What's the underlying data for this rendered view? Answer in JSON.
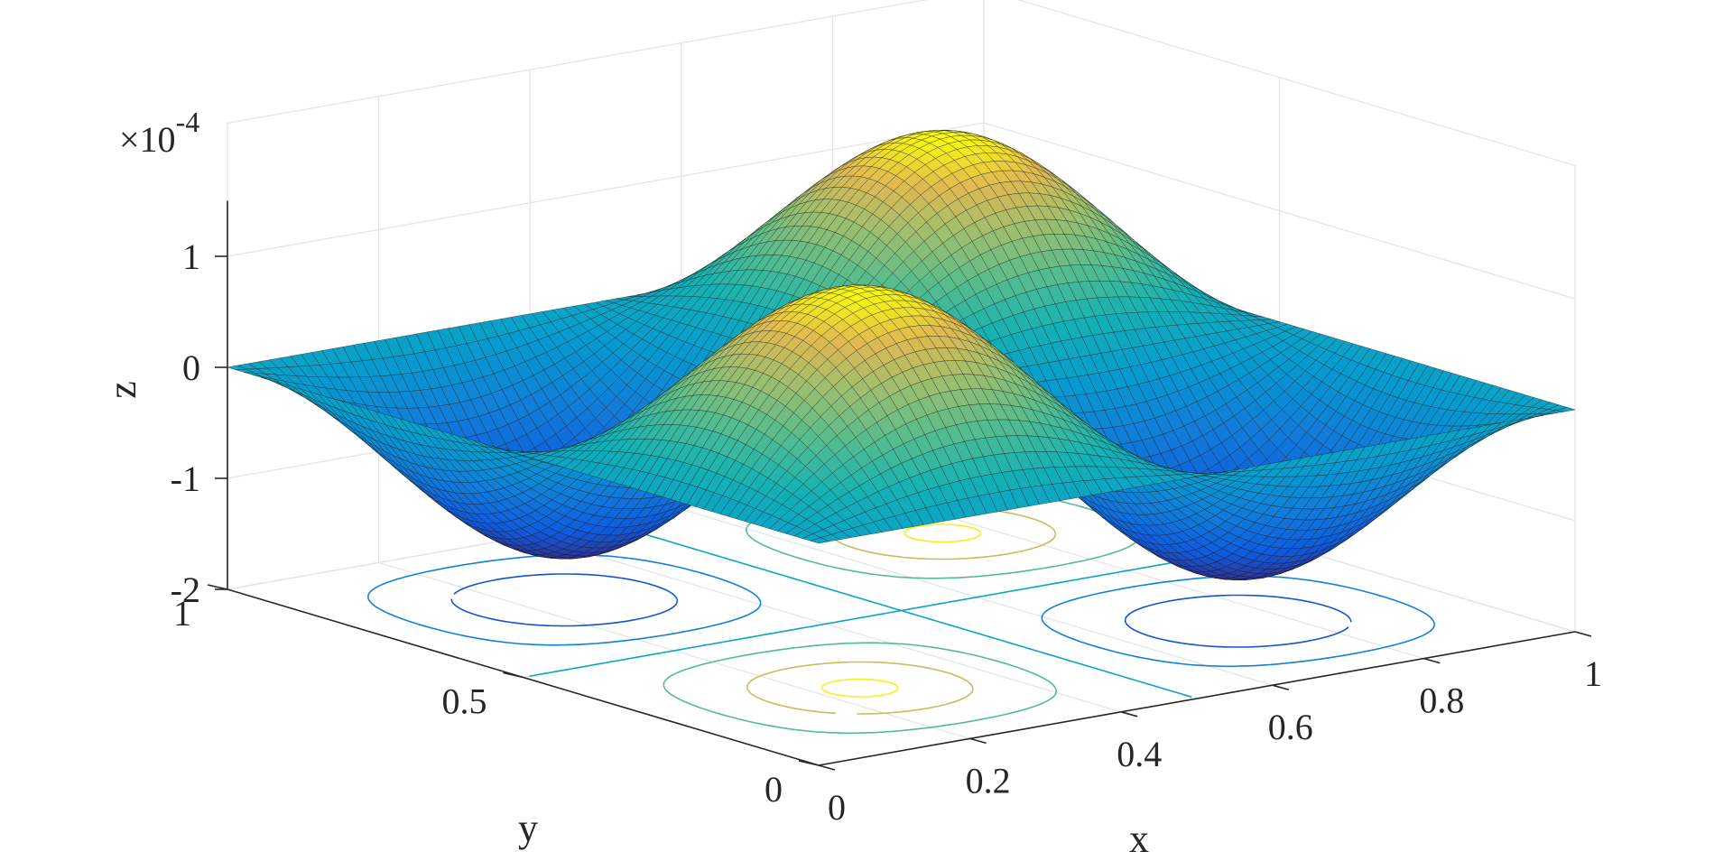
{
  "chart_data": {
    "type": "surface",
    "surface_function": "u(x,y) = A * sin(2*pi*x) * sin(2*pi*y), negative lobes reach -1.6e-4",
    "amplitude": 1.6,
    "z_exponent_label": "×10",
    "z_exponent_power": "-4",
    "xlabel": "x",
    "ylabel": "y",
    "zlabel": "z",
    "xlim": [
      0,
      1
    ],
    "ylim": [
      0,
      1
    ],
    "zlim": [
      -2,
      1.5
    ],
    "x_ticks": [
      "0",
      "0.2",
      "0.4",
      "0.6",
      "0.8",
      "1"
    ],
    "y_ticks": [
      "0",
      "0.5",
      "1"
    ],
    "z_ticks": [
      "-2",
      "-1",
      "0",
      "1"
    ],
    "contour_levels": [
      -1.2,
      -0.6,
      0,
      0.6,
      1.2,
      1.55
    ],
    "colormap": "parula",
    "grid": true
  }
}
